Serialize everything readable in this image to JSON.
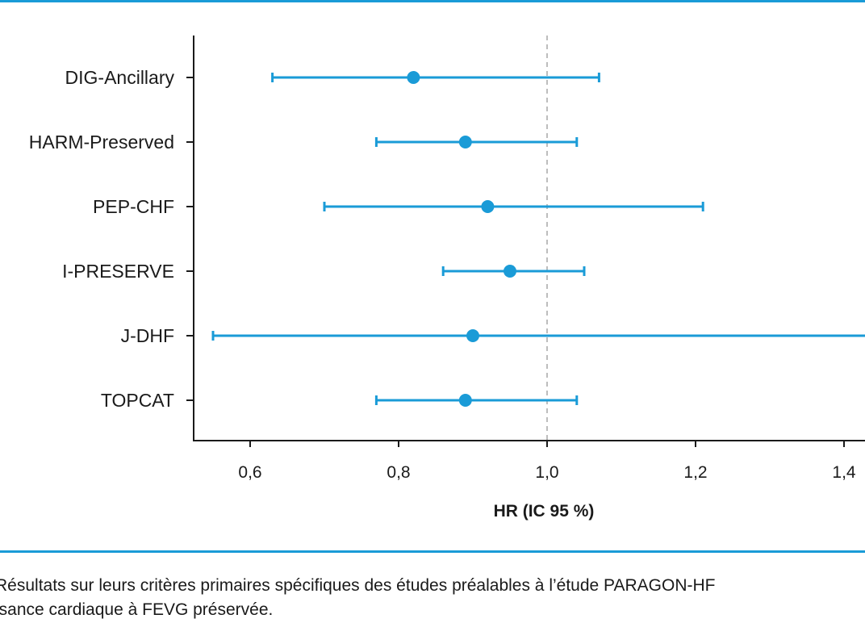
{
  "colors": {
    "accent": "#1a9bd7",
    "axis": "#1a1a1a",
    "reference": "#bdbdbd"
  },
  "chart_data": {
    "type": "scatter",
    "subtype": "forest-plot",
    "xlabel": "HR (IC 95 %)",
    "xlim": [
      0.53,
      1.43
    ],
    "xticks": [
      0.6,
      0.8,
      1.0,
      1.2,
      1.4
    ],
    "xtick_labels": [
      "0,6",
      "0,8",
      "1,0",
      "1,2",
      "1,4"
    ],
    "reference_line": 1.0,
    "studies": [
      {
        "name": "DIG-Ancillary",
        "hr": 0.82,
        "lo": 0.63,
        "hi": 1.07
      },
      {
        "name": "HARM-Preserved",
        "hr": 0.89,
        "lo": 0.77,
        "hi": 1.04
      },
      {
        "name": "PEP-CHF",
        "hr": 0.92,
        "lo": 0.7,
        "hi": 1.21
      },
      {
        "name": "I-PRESERVE",
        "hr": 0.95,
        "lo": 0.86,
        "hi": 1.05
      },
      {
        "name": "J-DHF",
        "hr": 0.9,
        "lo": 0.55,
        "hi": 1.46
      },
      {
        "name": "TOPCAT",
        "hr": 0.89,
        "lo": 0.77,
        "hi": 1.04
      }
    ]
  },
  "caption": "Résultats sur leurs critères primaires spécifiques des études préalables à l’étude PARAGON-HF\nisance cardiaque à FEVG préservée."
}
